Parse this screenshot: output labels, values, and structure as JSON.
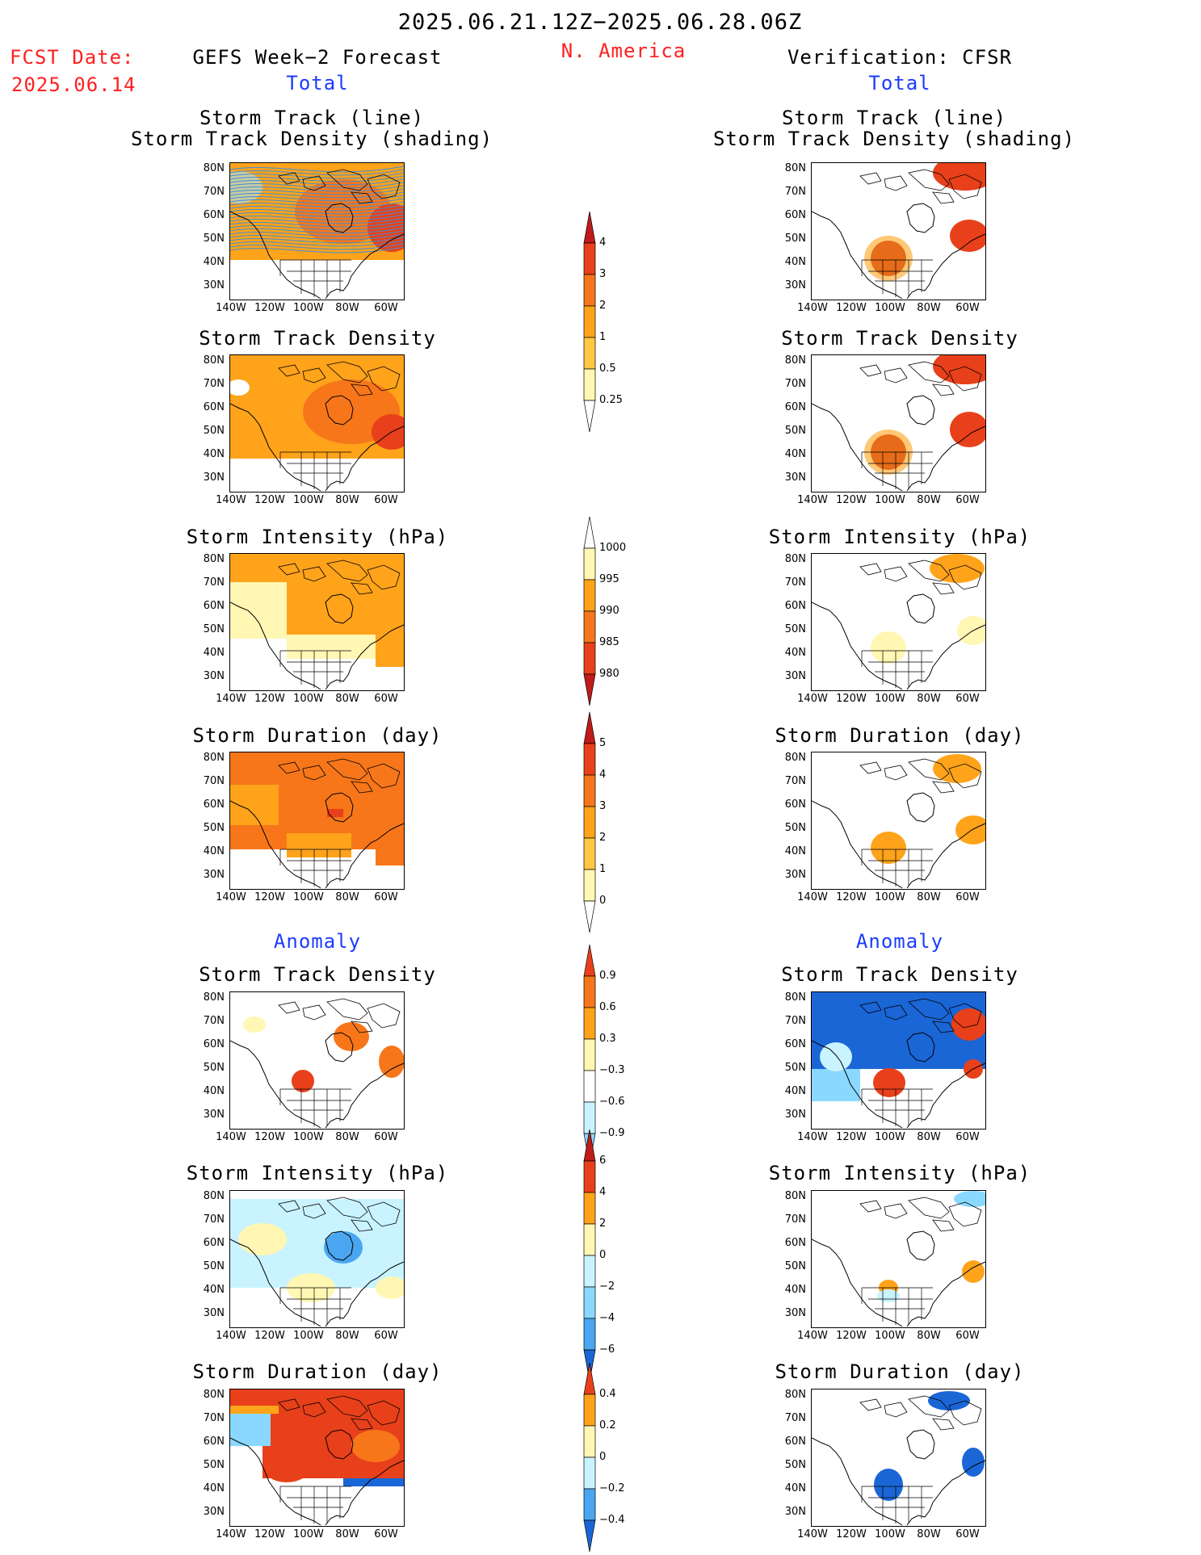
{
  "header": {
    "date_range": "2025.06.21.12Z−2025.06.28.06Z",
    "fcst_label": "FCST Date:",
    "fcst_date": "2025.06.14",
    "left_title": "GEFS Week−2 Forecast",
    "region": "N. America",
    "right_title": "Verification: CFSR",
    "total_label_left": "Total",
    "total_label_right": "Total",
    "anomaly_label_left": "Anomaly",
    "anomaly_label_right": "Anomaly"
  },
  "axes": {
    "lat_labels": [
      "80N",
      "70N",
      "60N",
      "50N",
      "40N",
      "30N"
    ],
    "lon_labels": [
      "140W",
      "120W",
      "100W",
      "80W",
      "60W"
    ]
  },
  "panels": {
    "track_line_title1": "Storm Track (line)",
    "track_line_title2": "Storm Track Density (shading)",
    "track_density": "Storm Track Density",
    "intensity": "Storm Intensity (hPa)",
    "duration": "Storm Duration (day)"
  },
  "colorbars": {
    "density_total": [
      "4",
      "3",
      "2",
      "1",
      "0.5",
      "0.25"
    ],
    "intensity_total": [
      "1000",
      "995",
      "990",
      "985",
      "980"
    ],
    "duration_total": [
      "5",
      "4",
      "3",
      "2",
      "1",
      "0"
    ],
    "density_anom": [
      "0.9",
      "0.6",
      "0.3",
      "−0.3",
      "−0.6",
      "−0.9"
    ],
    "intensity_anom": [
      "6",
      "4",
      "2",
      "0",
      "−2",
      "−4",
      "−6"
    ],
    "duration_anom": [
      "0.4",
      "0.2",
      "0",
      "−0.2",
      "−0.4"
    ]
  },
  "colors": {
    "warm": [
      "#fff7b3",
      "#ffe07a",
      "#ffc840",
      "#ffa31a",
      "#f7761a",
      "#e8401a",
      "#c01a1a"
    ],
    "cool": [
      "#c9f3ff",
      "#8ad8ff",
      "#4aa6f0",
      "#1a66d6"
    ]
  }
}
